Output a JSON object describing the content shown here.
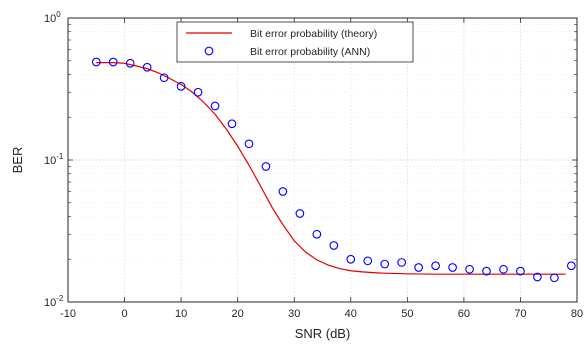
{
  "chart_data": {
    "type": "line",
    "title": "",
    "xlabel": "SNR (dB)",
    "ylabel": "BER",
    "xlim": [
      -10,
      80
    ],
    "ylim": [
      0.01,
      1
    ],
    "yscale": "log",
    "grid": true,
    "legend_position": "top-right",
    "x_ticks": [
      -10,
      0,
      10,
      20,
      30,
      40,
      50,
      60,
      70,
      80
    ],
    "x_tick_labels": [
      "-10",
      "0",
      "10",
      "20",
      "30",
      "40",
      "50",
      "60",
      "70",
      "80"
    ],
    "y_ticks": [
      0.01,
      0.1,
      1
    ],
    "y_tick_bases": [
      "10",
      "10",
      "10"
    ],
    "y_tick_exponents": [
      "-2",
      "-1",
      "0"
    ],
    "series": [
      {
        "name": "Bit error probability (theory)",
        "style": "line",
        "color": "#e00000",
        "x": [
          -5,
          -2,
          0,
          2,
          4,
          6,
          8,
          10,
          12,
          14,
          16,
          18,
          20,
          22,
          24,
          26,
          28,
          30,
          32,
          34,
          36,
          38,
          40,
          42,
          45,
          50,
          55,
          60,
          65,
          70,
          75,
          78
        ],
        "y": [
          0.485,
          0.485,
          0.48,
          0.46,
          0.44,
          0.41,
          0.375,
          0.34,
          0.3,
          0.255,
          0.21,
          0.165,
          0.125,
          0.092,
          0.066,
          0.047,
          0.035,
          0.027,
          0.0225,
          0.0198,
          0.0182,
          0.0172,
          0.0166,
          0.0163,
          0.016,
          0.0158,
          0.0157,
          0.0157,
          0.0157,
          0.0157,
          0.0157,
          0.0157
        ]
      },
      {
        "name": "Bit error probability (ANN)",
        "style": "markers",
        "marker": "circle",
        "color": "#0000ff",
        "x": [
          -5,
          -2,
          1,
          4,
          7,
          10,
          13,
          16,
          19,
          22,
          25,
          28,
          31,
          34,
          37,
          40,
          43,
          46,
          49,
          52,
          55,
          58,
          61,
          64,
          67,
          70,
          73,
          76,
          79
        ],
        "y": [
          0.49,
          0.49,
          0.48,
          0.45,
          0.38,
          0.33,
          0.3,
          0.24,
          0.18,
          0.13,
          0.09,
          0.06,
          0.042,
          0.03,
          0.025,
          0.02,
          0.0195,
          0.0185,
          0.019,
          0.0175,
          0.018,
          0.0175,
          0.017,
          0.0165,
          0.017,
          0.0165,
          0.015,
          0.0148,
          0.018
        ]
      }
    ]
  }
}
